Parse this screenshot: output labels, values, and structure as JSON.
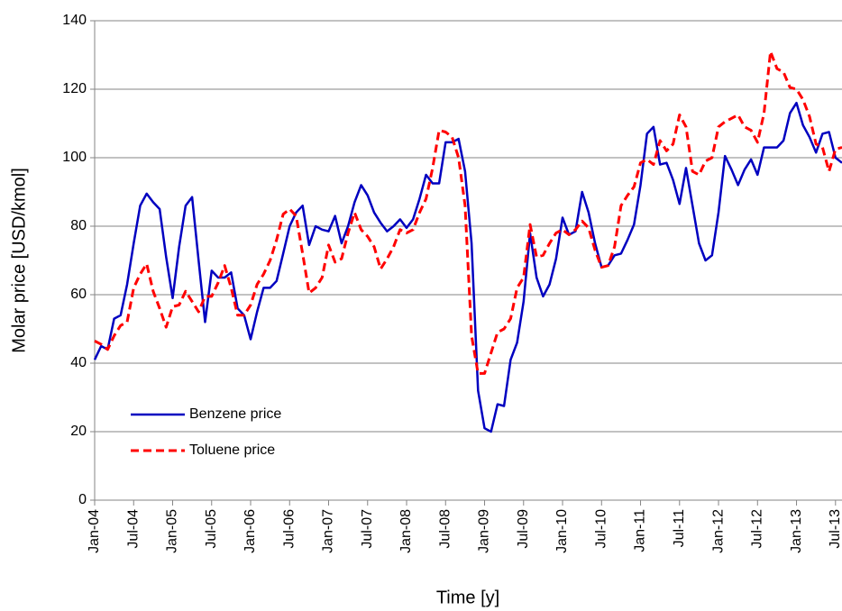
{
  "chart_data": {
    "type": "line",
    "x_label": "Time [y]",
    "y_label": "Molar price [USD/kmol]",
    "categories": [
      "Jan-04",
      null,
      null,
      null,
      null,
      null,
      "Jul-04",
      null,
      null,
      null,
      null,
      null,
      "Jan-05",
      null,
      null,
      null,
      null,
      null,
      "Jul-05",
      null,
      null,
      null,
      null,
      null,
      "Jan-06",
      null,
      null,
      null,
      null,
      null,
      "Jul-06",
      null,
      null,
      null,
      null,
      null,
      "Jan-07",
      null,
      null,
      null,
      null,
      null,
      "Jul-07",
      null,
      null,
      null,
      null,
      null,
      "Jan-08",
      null,
      null,
      null,
      null,
      null,
      "Jul-08",
      null,
      null,
      null,
      null,
      null,
      "Jan-09",
      null,
      null,
      null,
      null,
      null,
      "Jul-09",
      null,
      null,
      null,
      null,
      null,
      "Jan-10",
      null,
      null,
      null,
      null,
      null,
      "Jul-10",
      null,
      null,
      null,
      null,
      null,
      "Jan-11",
      null,
      null,
      null,
      null,
      null,
      "Jul-11",
      null,
      null,
      null,
      null,
      null,
      "Jan-12",
      null,
      null,
      null,
      null,
      null,
      "Jul-12",
      null,
      null,
      null,
      null,
      null,
      "Jan-13",
      null,
      null,
      null,
      null,
      null,
      "Jul-13",
      null
    ],
    "series": [
      {
        "name": "Benzene price",
        "color": "#0000c0",
        "dash": false,
        "values": [
          41,
          45,
          44,
          53,
          54,
          63,
          75,
          86,
          89.5,
          87,
          85,
          71,
          59,
          74,
          86,
          88.5,
          70,
          52,
          67,
          65,
          65,
          66.5,
          56,
          54,
          47,
          55,
          62,
          62,
          64,
          72,
          80,
          84,
          86,
          74.5,
          80,
          79,
          78.5,
          83,
          75,
          80,
          87,
          92,
          89,
          84,
          81,
          78.5,
          80,
          82,
          79.5,
          82,
          88,
          95,
          92.5,
          92.5,
          104.5,
          104.5,
          105.5,
          96,
          75,
          32,
          21,
          20,
          28,
          27.5,
          41,
          46,
          58,
          78,
          65,
          59.5,
          63,
          70.5,
          82.5,
          77.5,
          78.5,
          90,
          84,
          75,
          68,
          68.5,
          71.5,
          72,
          76,
          80.5,
          92,
          107,
          109,
          98,
          98.5,
          93.5,
          86.5,
          97,
          86,
          75,
          70,
          71.5,
          84,
          100.5,
          96.5,
          92,
          96.5,
          99.5,
          95,
          103,
          103,
          103,
          105,
          113,
          116,
          109.5,
          106,
          101.5,
          107,
          107.5,
          100,
          98.5
        ]
      },
      {
        "name": "Toluene price",
        "color": "#ff0000",
        "dash": true,
        "values": [
          46.5,
          45.5,
          44,
          48,
          51,
          52,
          62,
          66,
          69,
          61,
          56,
          50.5,
          56.5,
          57,
          61,
          58,
          55,
          59.5,
          59.5,
          63.5,
          68.5,
          62,
          54,
          54,
          57,
          63,
          66,
          70,
          76,
          83.5,
          85,
          83,
          72,
          60.5,
          62,
          65,
          74.5,
          69.5,
          70.5,
          78,
          84,
          79,
          77,
          74,
          67.5,
          70.5,
          74,
          79,
          78,
          79,
          84,
          88,
          97,
          108,
          107.5,
          106,
          100,
          86,
          48,
          37,
          37,
          43,
          49,
          50,
          53,
          62,
          65,
          80.5,
          71,
          71.5,
          75,
          78,
          79,
          77.5,
          79,
          81.5,
          79.5,
          73,
          68,
          68.5,
          74,
          86,
          89,
          91.5,
          98.5,
          99.5,
          98,
          105,
          102,
          104,
          112.5,
          109,
          96,
          95,
          99,
          100,
          109,
          110.5,
          111.5,
          112.5,
          109,
          108,
          104.5,
          113,
          131,
          126,
          125,
          120.5,
          120,
          117,
          112,
          104,
          103,
          96,
          102.5,
          103
        ]
      }
    ],
    "ylim": [
      0,
      140
    ],
    "yticks": [
      0,
      20,
      40,
      60,
      80,
      100,
      120,
      140
    ],
    "grid": true,
    "legend": "lower left"
  }
}
